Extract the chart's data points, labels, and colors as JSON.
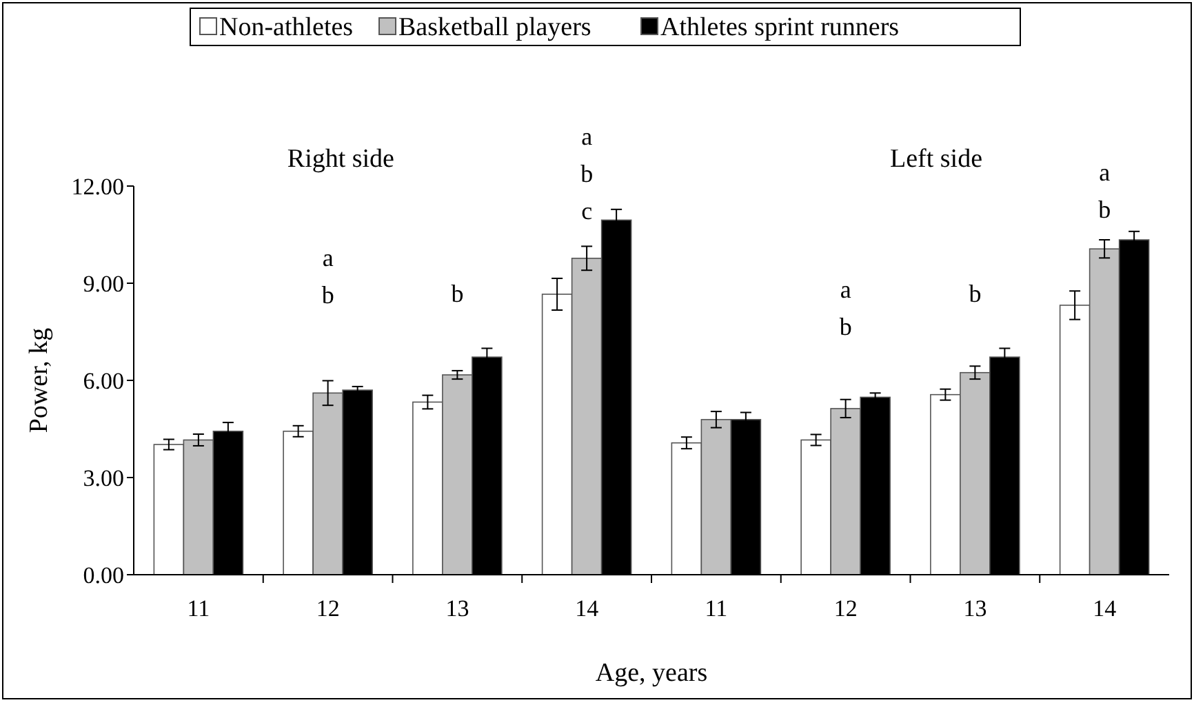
{
  "chart_data": {
    "type": "bar",
    "xlabel": "Age, years",
    "ylabel": "Power, kg",
    "categories": [
      "11",
      "12",
      "13",
      "14",
      "11",
      "12",
      "13",
      "14"
    ],
    "series": [
      {
        "name": "Non-athletes",
        "color": "#ffffff",
        "values": [
          4.02,
          4.43,
          5.33,
          8.66,
          4.07,
          4.16,
          5.56,
          8.32
        ],
        "errors": [
          0.16,
          0.17,
          0.21,
          0.49,
          0.18,
          0.17,
          0.17,
          0.44
        ]
      },
      {
        "name": "Basketball players",
        "color": "#c0c0c0",
        "values": [
          4.16,
          5.61,
          6.17,
          9.77,
          4.79,
          5.13,
          6.24,
          10.06
        ],
        "errors": [
          0.18,
          0.38,
          0.13,
          0.37,
          0.25,
          0.28,
          0.2,
          0.28
        ]
      },
      {
        "name": "Athletes sprint runners",
        "color": "#000000",
        "values": [
          4.43,
          5.7,
          6.72,
          10.95,
          4.79,
          5.48,
          6.72,
          10.34
        ],
        "errors": [
          0.27,
          0.11,
          0.27,
          0.33,
          0.22,
          0.13,
          0.27,
          0.26
        ]
      }
    ],
    "ylim": [
      0,
      12
    ],
    "yticks": [
      {
        "value": 0,
        "label": "0.00"
      },
      {
        "value": 3,
        "label": "3.00"
      },
      {
        "value": 6,
        "label": "6.00"
      },
      {
        "value": 9,
        "label": "9.00"
      },
      {
        "value": 12,
        "label": "12.00"
      }
    ],
    "annotations": [
      "Right side",
      "Left side",
      "a\nb",
      "b",
      "a\nb\nc",
      "a\nb",
      "b",
      "a\nb"
    ],
    "legend": "top",
    "grid": false
  }
}
